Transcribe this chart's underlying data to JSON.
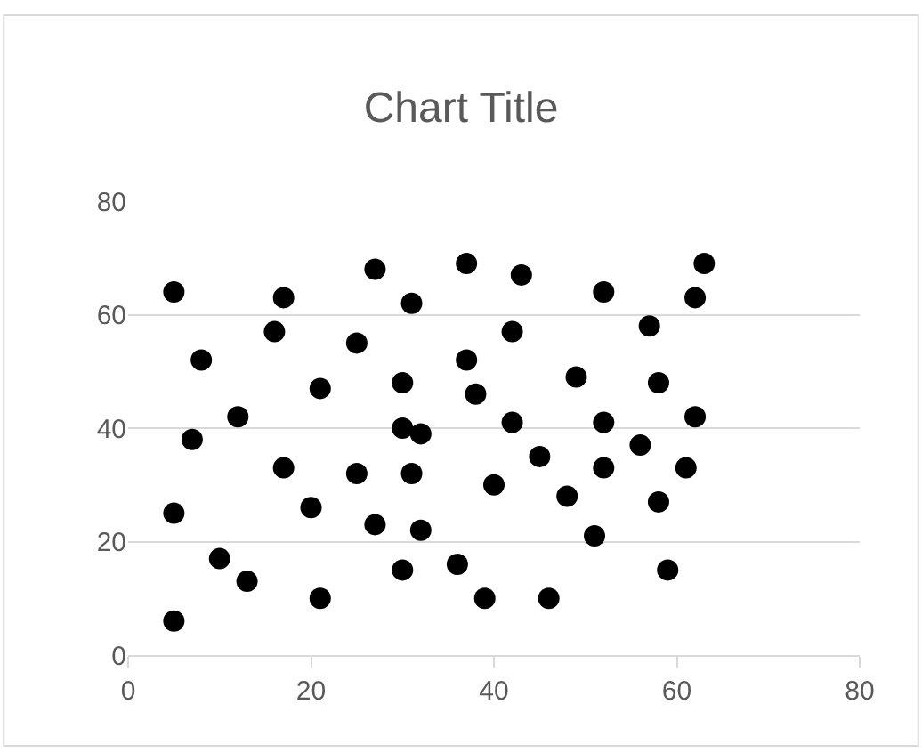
{
  "chart_data": {
    "type": "scatter",
    "title": "Chart Title",
    "x": [
      5,
      17,
      27,
      31,
      37,
      16,
      25,
      8,
      37,
      21,
      30,
      38,
      12,
      7,
      30,
      32,
      17,
      25,
      31,
      40,
      5,
      20,
      27,
      32,
      10,
      13,
      30,
      36,
      21,
      39,
      5,
      43,
      52,
      63,
      62,
      42,
      57,
      49,
      58,
      42,
      52,
      62,
      56,
      45,
      52,
      61,
      48,
      58,
      51,
      59,
      46
    ],
    "values": [
      64,
      63,
      68,
      62,
      69,
      57,
      55,
      52,
      52,
      47,
      48,
      46,
      42,
      38,
      40,
      39,
      33,
      32,
      32,
      30,
      25,
      26,
      23,
      22,
      17,
      13,
      15,
      16,
      10,
      10,
      6,
      67,
      64,
      69,
      63,
      57,
      58,
      49,
      48,
      41,
      41,
      42,
      37,
      35,
      33,
      33,
      28,
      27,
      21,
      15,
      10
    ],
    "color": "#000000",
    "marker": "circle",
    "xlim": [
      0,
      80
    ],
    "xticks": [
      0,
      20,
      40,
      60,
      80
    ],
    "ylim": [
      0,
      80
    ],
    "yticks": [
      0,
      20,
      40,
      60,
      80
    ],
    "grid": "y"
  }
}
